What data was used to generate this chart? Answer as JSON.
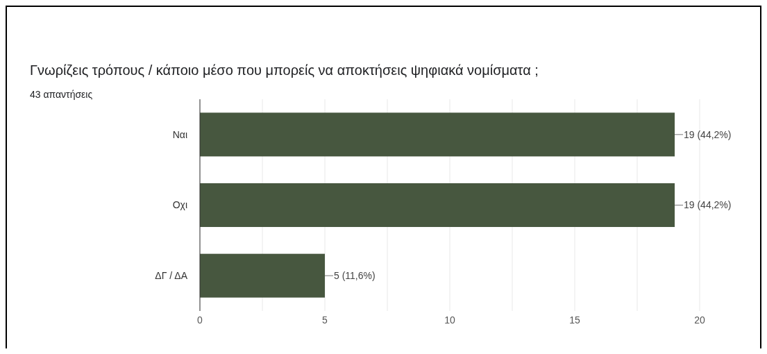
{
  "chart_data": {
    "type": "bar",
    "orientation": "horizontal",
    "title": "Γνωρίζεις τρόπους / κάποιο μέσο που μπορείς να αποκτήσεις ψηφιακά νομίσματα ;",
    "subtitle": "43 απαντήσεις",
    "categories": [
      "Ναι",
      "Οχι",
      "ΔΓ / ΔΑ"
    ],
    "values": [
      19,
      19,
      5
    ],
    "value_labels": [
      "19 (44,2%)",
      "19 (44,2%)",
      "5 (11,6%)"
    ],
    "color": "#47573f",
    "xlim": [
      0,
      20
    ],
    "xticks": [
      0,
      {
        "value": 2.5,
        "label": null
      },
      5,
      {
        "value": 7.5,
        "label": null
      },
      10,
      {
        "value": 12.5,
        "label": null
      },
      15,
      {
        "value": 17.5,
        "label": null
      },
      20
    ],
    "grid": "x"
  }
}
